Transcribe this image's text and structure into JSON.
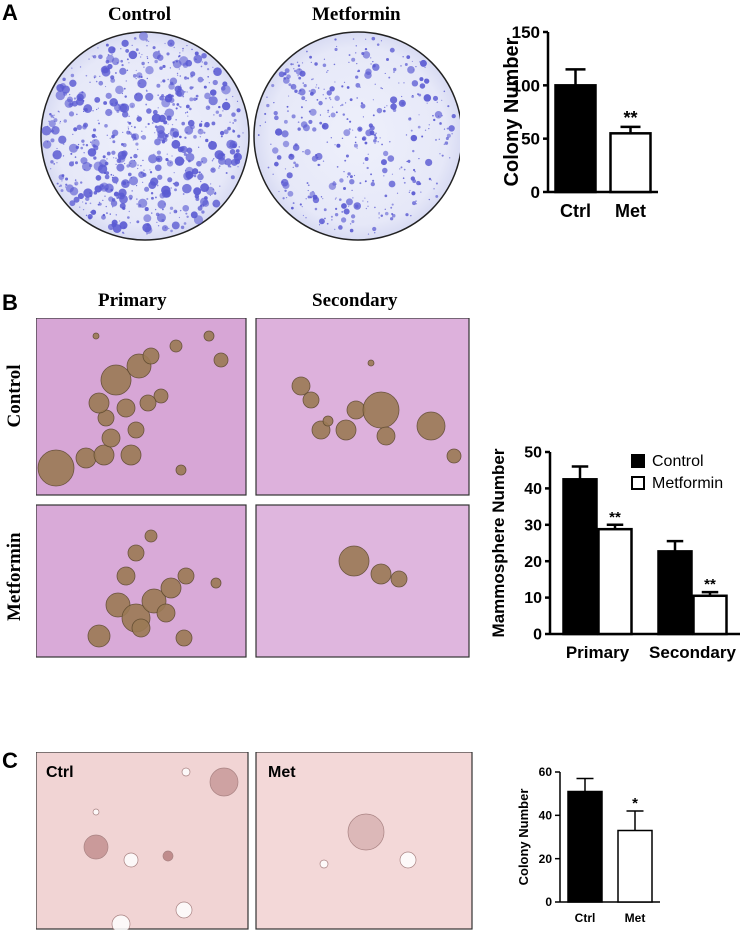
{
  "panels": {
    "a": {
      "letter": "A",
      "dish_labels": [
        "Control",
        "Metformin"
      ]
    },
    "b": {
      "letter": "B",
      "col_labels": [
        "Primary",
        "Secondary"
      ],
      "row_labels": [
        "Control",
        "Metformin"
      ]
    },
    "c": {
      "letter": "C",
      "photo_labels": [
        "Ctrl",
        "Met"
      ]
    }
  },
  "colors": {
    "bar_control": "#000000",
    "bar_treatment": "#ffffff",
    "dish_stain": "#5a5ad2",
    "mammo_bg": "#d9a7d8",
    "panel_c_bg": "#f2d6d6"
  },
  "chart_data": [
    {
      "type": "bar",
      "categories": [
        "Ctrl",
        "Met"
      ],
      "values": [
        100,
        55
      ],
      "errors": [
        15,
        6
      ],
      "significance": [
        "",
        "**"
      ],
      "ylabel": "Colony Number",
      "ylim": [
        0,
        150
      ],
      "yticks": [
        "0",
        "50",
        "100",
        "150"
      ],
      "bar_fills": [
        "#000000",
        "#ffffff"
      ]
    },
    {
      "type": "bar",
      "categories": [
        "Primary",
        "Secondary"
      ],
      "series": [
        {
          "name": "Control",
          "values": [
            42.5,
            22.7
          ],
          "errors": [
            3.5,
            2.8
          ],
          "significance": [
            "",
            ""
          ],
          "fill": "#000000"
        },
        {
          "name": "Metformin",
          "values": [
            28.8,
            10.5
          ],
          "errors": [
            1.2,
            1.0
          ],
          "significance": [
            "**",
            "**"
          ],
          "fill": "#ffffff"
        }
      ],
      "ylabel": "Mammosphere Number",
      "ylim": [
        0,
        50
      ],
      "yticks": [
        "0",
        "10",
        "20",
        "30",
        "40",
        "50"
      ],
      "legend": "top-right"
    },
    {
      "type": "bar",
      "categories": [
        "Ctrl",
        "Met"
      ],
      "values": [
        51,
        33
      ],
      "errors": [
        6,
        9
      ],
      "significance": [
        "",
        "*"
      ],
      "ylabel": "Colony Number",
      "ylim": [
        0,
        60
      ],
      "yticks": [
        "0",
        "20",
        "40",
        "60"
      ],
      "bar_fills": [
        "#000000",
        "#ffffff"
      ]
    }
  ]
}
